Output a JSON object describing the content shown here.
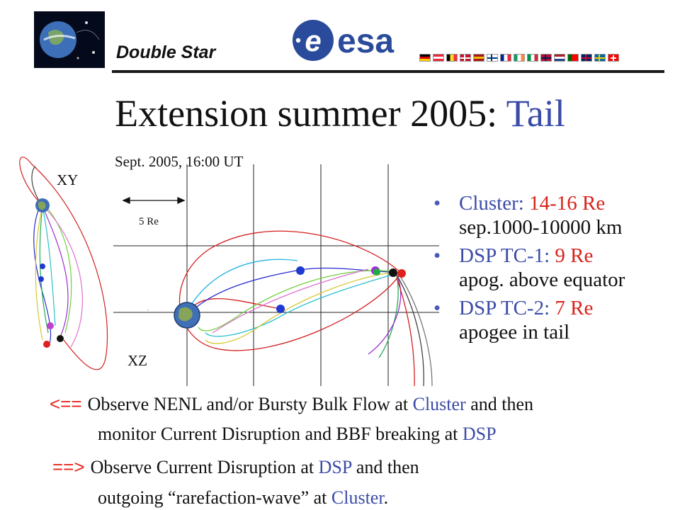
{
  "header": {
    "mission_name": "Double Star",
    "logo_text": "esa",
    "flags": [
      {
        "icon": "germany-flag-icon",
        "colors": [
          "#000000",
          "#dd0000",
          "#ffce00"
        ],
        "layout": "h"
      },
      {
        "icon": "austria-flag-icon",
        "colors": [
          "#ed2939",
          "#ffffff",
          "#ed2939"
        ],
        "layout": "h"
      },
      {
        "icon": "belgium-flag-icon",
        "colors": [
          "#000000",
          "#fdda24",
          "#ef3340"
        ],
        "layout": "v"
      },
      {
        "icon": "denmark-flag-icon",
        "colors": [
          "#c8102e",
          "#ffffff"
        ],
        "layout": "cross"
      },
      {
        "icon": "spain-flag-icon",
        "colors": [
          "#aa151b",
          "#f1bf00",
          "#aa151b"
        ],
        "layout": "h"
      },
      {
        "icon": "finland-flag-icon",
        "colors": [
          "#ffffff",
          "#003580"
        ],
        "layout": "cross"
      },
      {
        "icon": "france-flag-icon",
        "colors": [
          "#002395",
          "#ffffff",
          "#ed2939"
        ],
        "layout": "v"
      },
      {
        "icon": "ireland-flag-icon",
        "colors": [
          "#169b62",
          "#ffffff",
          "#ff883e"
        ],
        "layout": "v"
      },
      {
        "icon": "italy-flag-icon",
        "colors": [
          "#009246",
          "#ffffff",
          "#ce2b37"
        ],
        "layout": "v"
      },
      {
        "icon": "norway-flag-icon",
        "colors": [
          "#ba0c2f",
          "#00205b"
        ],
        "layout": "cross"
      },
      {
        "icon": "netherlands-flag-icon",
        "colors": [
          "#ae1c28",
          "#ffffff",
          "#21468b"
        ],
        "layout": "h"
      },
      {
        "icon": "portugal-flag-icon",
        "colors": [
          "#006600",
          "#ff0000"
        ],
        "layout": "split"
      },
      {
        "icon": "uk-flag-icon",
        "colors": [
          "#012169",
          "#c8102e"
        ],
        "layout": "cross"
      },
      {
        "icon": "sweden-flag-icon",
        "colors": [
          "#006aa7",
          "#fecc00"
        ],
        "layout": "cross"
      },
      {
        "icon": "switzerland-flag-icon",
        "colors": [
          "#ff0000",
          "#ffffff"
        ],
        "layout": "swiss"
      }
    ]
  },
  "title": {
    "main": "Extension summer 2005: ",
    "accent": "Tail"
  },
  "plot": {
    "caption": "Sept. 2005, 16:00 UT",
    "xy_label": "XY",
    "xz_label": "XZ",
    "scale_label": "5 Re"
  },
  "bullets": [
    {
      "name": "Cluster: ",
      "value": "14-16 Re",
      "detail": "sep.1000-10000 km"
    },
    {
      "name": "DSP TC-1: ",
      "value": "9 Re",
      "detail": "apog. above equator"
    },
    {
      "name": "DSP TC-2: ",
      "value": "7 Re",
      "detail": "apogee in tail"
    }
  ],
  "paragraphs": {
    "p1_arrow": "<==",
    "p1_a": "Observe NENL and/or Bursty Bulk Flow at ",
    "p1_b": "Cluster",
    "p1_c": " and then",
    "p2_a": "monitor Current Disruption and BBF breaking at ",
    "p2_b": "DSP",
    "p3_arrow": "==>",
    "p3_a": "Observe Current Disruption at ",
    "p3_b": "DSP",
    "p3_c": " and then",
    "p4_a": "outgoing “rarefaction-wave” at ",
    "p4_b": "Cluster",
    "p4_c": "."
  },
  "colors": {
    "accent_blue": "#3b4ba8",
    "accent_red": "#d9221b",
    "esa_blue": "#2a4a9b"
  }
}
